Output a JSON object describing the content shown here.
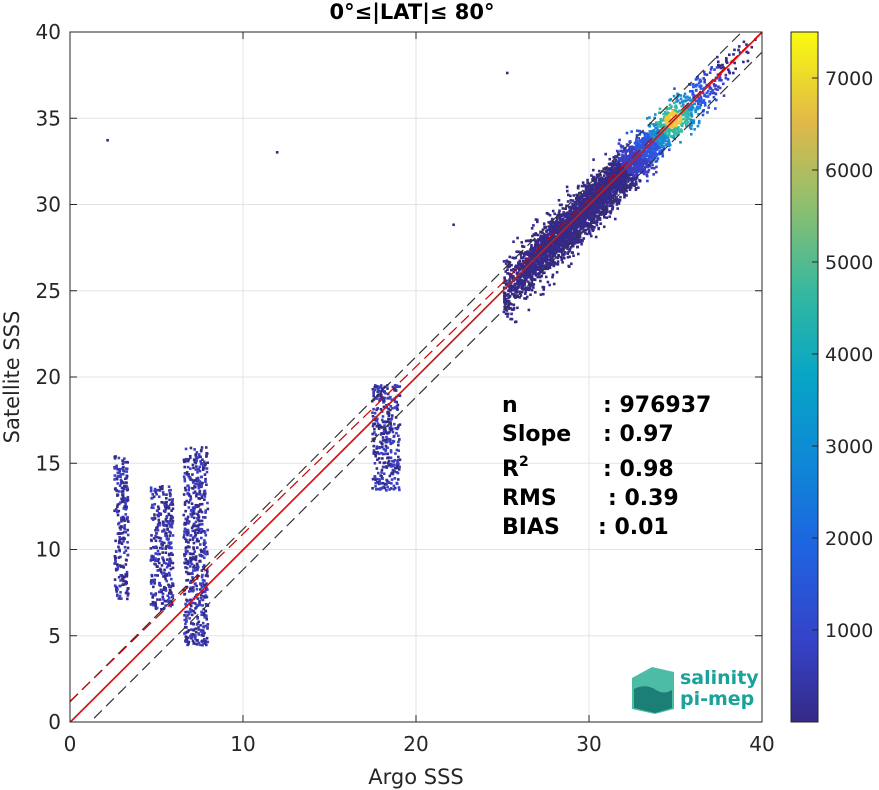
{
  "chart_data": {
    "type": "heatmap",
    "title": "0°≤|LAT|≤ 80°",
    "xlabel": "Argo SSS",
    "ylabel": "Satellite SSS",
    "xlim": [
      0,
      40
    ],
    "ylim": [
      0,
      40
    ],
    "xticks": [
      0,
      10,
      20,
      30,
      40
    ],
    "yticks": [
      0,
      5,
      10,
      15,
      20,
      25,
      30,
      35,
      40
    ],
    "grid": true,
    "colormap": "parula",
    "colorbar": {
      "min": 0,
      "max": 7500,
      "ticks": [
        1000,
        2000,
        3000,
        4000,
        5000,
        6000,
        7000
      ]
    },
    "clusters": [
      {
        "x_range": [
          2.5,
          3.3
        ],
        "y_range": [
          7.2,
          15.5
        ],
        "density": "low"
      },
      {
        "x_range": [
          4.6,
          5.9
        ],
        "y_range": [
          6.6,
          13.8
        ],
        "density": "low"
      },
      {
        "x_range": [
          6.5,
          7.9
        ],
        "y_range": [
          4.5,
          16.0
        ],
        "density": "low"
      },
      {
        "x_range": [
          17.4,
          19.0
        ],
        "y_range": [
          13.5,
          19.6
        ],
        "density": "low"
      },
      {
        "x_range": [
          25.0,
          40.0
        ],
        "y_range": [
          22.0,
          40.0
        ],
        "density": "high",
        "peak": [
          34.8,
          35.0
        ]
      }
    ],
    "lines": [
      {
        "name": "1:1",
        "slope": 1.0,
        "intercept": 0.0,
        "color": "#555555",
        "style": "solid"
      },
      {
        "name": "+spread",
        "slope": 1.0,
        "intercept": 1.17,
        "color": "#333333",
        "style": "dashed"
      },
      {
        "name": "-spread",
        "slope": 1.0,
        "intercept": -1.17,
        "color": "#333333",
        "style": "dashed"
      },
      {
        "name": "fit",
        "slope": 0.97,
        "intercept": 1.2,
        "color": "#cc0000",
        "style": "dashed"
      },
      {
        "name": "regression",
        "slope": 1.0,
        "intercept": -0.04,
        "color": "#ff0000",
        "style": "solid"
      }
    ],
    "stats": [
      {
        "label": "n",
        "value": ": 976937"
      },
      {
        "label": "Slope",
        "value": ": 0.97"
      },
      {
        "label": "R2",
        "value": ": 0.98"
      },
      {
        "label": "RMS",
        "value": ": 0.39"
      },
      {
        "label": "BIAS",
        "value": ": 0.01"
      }
    ]
  },
  "logo": {
    "line1": "salinity",
    "line2": "pi-mep"
  }
}
